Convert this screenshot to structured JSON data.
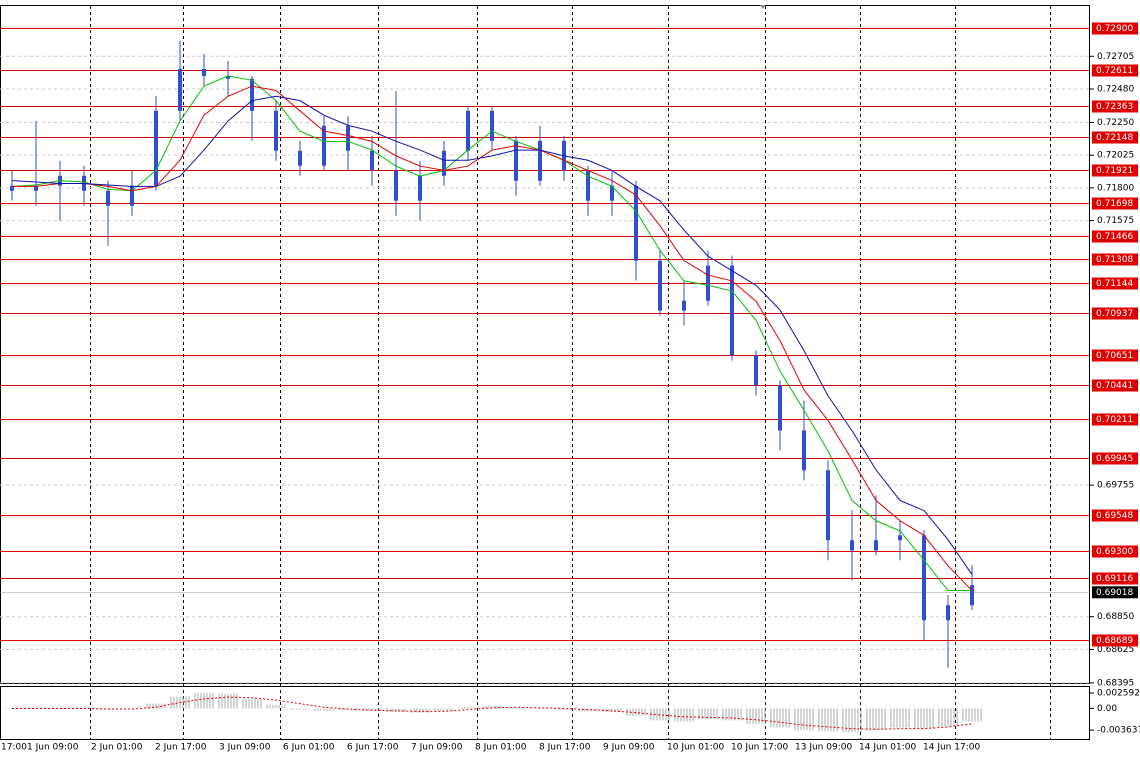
{
  "chart_data": [
    {
      "type": "candlestick",
      "color": "#2f4fd0",
      "ohlc": [
        [
          0.71815,
          0.71918,
          0.71712,
          0.7178
        ],
        [
          0.7178,
          0.72261,
          0.71677,
          0.71815
        ],
        [
          0.71815,
          0.71986,
          0.71574,
          0.71883
        ],
        [
          0.71883,
          0.71952,
          0.71677,
          0.7178
        ],
        [
          0.7178,
          0.71849,
          0.71402,
          0.71677
        ],
        [
          0.71677,
          0.71918,
          0.71608,
          0.71815
        ],
        [
          0.71815,
          0.72433,
          0.7178,
          0.7233
        ],
        [
          0.7233,
          0.72811,
          0.72261,
          0.72618
        ],
        [
          0.72618,
          0.72722,
          0.72502,
          0.7257
        ],
        [
          0.7257,
          0.72673,
          0.72433,
          0.7255
        ],
        [
          0.7255,
          0.7257,
          0.72124,
          0.7233
        ],
        [
          0.7233,
          0.72398,
          0.71986,
          0.72055
        ],
        [
          0.72055,
          0.72124,
          0.71883,
          0.71952
        ],
        [
          0.71952,
          0.72295,
          0.71918,
          0.72227
        ],
        [
          0.72227,
          0.72295,
          0.71918,
          0.72055
        ],
        [
          0.72055,
          0.72158,
          0.71815,
          0.71918
        ],
        [
          0.71918,
          0.72467,
          0.71608,
          0.71712
        ],
        [
          0.71712,
          0.71986,
          0.71574,
          0.71883
        ],
        [
          0.71883,
          0.72124,
          0.71815,
          0.72055
        ],
        [
          0.72055,
          0.72364,
          0.71986,
          0.7233
        ],
        [
          0.7233,
          0.72364,
          0.72055,
          0.72124
        ],
        [
          0.72124,
          0.72158,
          0.71746,
          0.71849
        ],
        [
          0.71849,
          0.72227,
          0.71815,
          0.72124
        ],
        [
          0.72124,
          0.72158,
          0.71849,
          0.71918
        ],
        [
          0.71918,
          0.71952,
          0.71608,
          0.71712
        ],
        [
          0.71712,
          0.71918,
          0.71608,
          0.71815
        ],
        [
          0.71815,
          0.71849,
          0.71162,
          0.71299
        ],
        [
          0.71299,
          0.71368,
          0.70921,
          0.70956
        ],
        [
          0.70956,
          0.71162,
          0.70853,
          0.71024
        ],
        [
          0.71024,
          0.71368,
          0.7099,
          0.71265
        ],
        [
          0.71265,
          0.71334,
          0.70612,
          0.70647
        ],
        [
          0.70647,
          0.70681,
          0.70372,
          0.70441
        ],
        [
          0.70441,
          0.70475,
          0.69994,
          0.70131
        ],
        [
          0.70131,
          0.70337,
          0.69788,
          0.69857
        ],
        [
          0.69857,
          0.69925,
          0.69238,
          0.69376
        ],
        [
          0.69376,
          0.69582,
          0.69101,
          0.69307
        ],
        [
          0.69307,
          0.69685,
          0.69273,
          0.69376
        ],
        [
          0.69376,
          0.69513,
          0.69238,
          0.6941
        ],
        [
          0.6941,
          0.69444,
          0.68689,
          0.68826
        ],
        [
          0.68826,
          0.68998,
          0.68496,
          0.68929
        ],
        [
          0.68929,
          0.69204,
          0.68895,
          0.69067
        ]
      ],
      "lines": [
        {
          "color": "#00c000",
          "values": [
            0.7181,
            0.7182,
            0.7185,
            0.7184,
            0.7179,
            0.7178,
            0.7192,
            0.7226,
            0.725,
            0.7257,
            0.7254,
            0.724,
            0.7219,
            0.7212,
            0.7212,
            0.7206,
            0.7195,
            0.7188,
            0.7192,
            0.7206,
            0.7219,
            0.7212,
            0.7206,
            0.7199,
            0.7188,
            0.7181,
            0.7164,
            0.7137,
            0.7116,
            0.7113,
            0.7109,
            0.7089,
            0.7054,
            0.7027,
            0.6999,
            0.6965,
            0.6951,
            0.6944,
            0.6924,
            0.6903,
            0.6903
          ]
        },
        {
          "color": "#e00000",
          "values": [
            0.7181,
            0.7181,
            0.7183,
            0.7183,
            0.7181,
            0.7178,
            0.7181,
            0.7199,
            0.723,
            0.7243,
            0.725,
            0.7247,
            0.7233,
            0.7219,
            0.7216,
            0.7212,
            0.7202,
            0.7195,
            0.7192,
            0.7195,
            0.7206,
            0.7209,
            0.7206,
            0.7199,
            0.7192,
            0.7185,
            0.7175,
            0.7154,
            0.713,
            0.712,
            0.7116,
            0.7102,
            0.7075,
            0.7041,
            0.702,
            0.6993,
            0.6965,
            0.6951,
            0.6941,
            0.692,
            0.6903
          ]
        },
        {
          "color": "#1010b0",
          "values": [
            0.7185,
            0.7184,
            0.7183,
            0.7183,
            0.7182,
            0.7181,
            0.7181,
            0.7188,
            0.7206,
            0.7226,
            0.724,
            0.7243,
            0.724,
            0.723,
            0.7223,
            0.7219,
            0.7212,
            0.7206,
            0.7199,
            0.7199,
            0.7202,
            0.7206,
            0.7206,
            0.7202,
            0.7199,
            0.7192,
            0.7181,
            0.7171,
            0.7151,
            0.7133,
            0.7123,
            0.7113,
            0.7096,
            0.7068,
            0.7037,
            0.7013,
            0.6986,
            0.6965,
            0.6958,
            0.6938,
            0.6914
          ]
        }
      ],
      "levels": [
        {
          "value": 0.729,
          "label": "0.72900"
        },
        0.72611,
        0.72363,
        0.72148,
        0.71921,
        0.71698,
        0.71466,
        0.71308,
        0.71144,
        0.70937,
        0.70651,
        0.70441,
        0.70211,
        0.69945,
        0.69548,
        {
          "value": 0.693,
          "label": "0.69300"
        },
        0.69116,
        0.68689
      ],
      "level_color": "#e00000",
      "last_price": 0.69018,
      "ylim": [
        0.68394,
        0.73051
      ],
      "yticks": [
        0.72705,
        {
          "value": 0.7248,
          "label": "0.72480"
        },
        {
          "value": 0.7225,
          "label": "0.72250"
        },
        0.72025,
        {
          "value": 0.718,
          "label": "0.71800"
        },
        0.71575,
        0.69755,
        {
          "value": 0.6885,
          "label": "0.68850"
        },
        0.68625,
        0.68395
      ],
      "xlabels": [
        "17:00",
        "1 Jun 09:00",
        "2 Jun 01:00",
        "2 Jun 17:00",
        "3 Jun 09:00",
        "6 Jun 01:00",
        "6 Jun 17:00",
        "7 Jun 09:00",
        "8 Jun 01:00",
        "8 Jun 17:00",
        "9 Jun 09:00",
        "10 Jun 01:00",
        "10 Jun 17:00",
        "13 Jun 09:00",
        "14 Jun 01:00",
        "14 Jun 17:00"
      ],
      "grid": true
    },
    {
      "type": "oscillator",
      "histogram": [
        0.0001,
        0.0,
        -0.0001,
        0.0,
        -0.0002,
        -0.0001,
        0.0008,
        0.002,
        0.0026,
        0.0024,
        0.0016,
        0.0006,
        -0.0002,
        -0.0004,
        -0.0003,
        -0.0004,
        -0.0006,
        -0.0007,
        -0.0004,
        0.0002,
        0.0004,
        0.0001,
        0.0,
        -0.0002,
        -0.0005,
        -0.0006,
        -0.0012,
        -0.002,
        -0.0022,
        -0.0018,
        -0.002,
        -0.0026,
        -0.0032,
        -0.0036,
        -0.0038,
        -0.004,
        -0.0036,
        -0.0032,
        -0.0034,
        -0.003,
        -0.0022
      ],
      "signal": [
        0.0,
        0.0,
        0.0,
        0.0,
        -0.0001,
        -0.0001,
        0.0002,
        0.001,
        0.0016,
        0.0019,
        0.0018,
        0.0014,
        0.0008,
        0.0002,
        -0.0001,
        -0.0003,
        -0.0004,
        -0.0005,
        -0.0005,
        -0.0002,
        0.0001,
        0.0002,
        0.0001,
        0.0,
        -0.0002,
        -0.0004,
        -0.0007,
        -0.0011,
        -0.0014,
        -0.0015,
        -0.0016,
        -0.0019,
        -0.0023,
        -0.0028,
        -0.0031,
        -0.0034,
        -0.0035,
        -0.0034,
        -0.0034,
        -0.0031,
        -0.0026
      ],
      "hist_color": "#a8a8a8",
      "signal_color": "#e00000",
      "ylim": [
        -0.0053,
        0.0036
      ],
      "yticks": [
        0.002592,
        {
          "value": 0,
          "label": "0.00"
        },
        -0.003637
      ]
    }
  ]
}
